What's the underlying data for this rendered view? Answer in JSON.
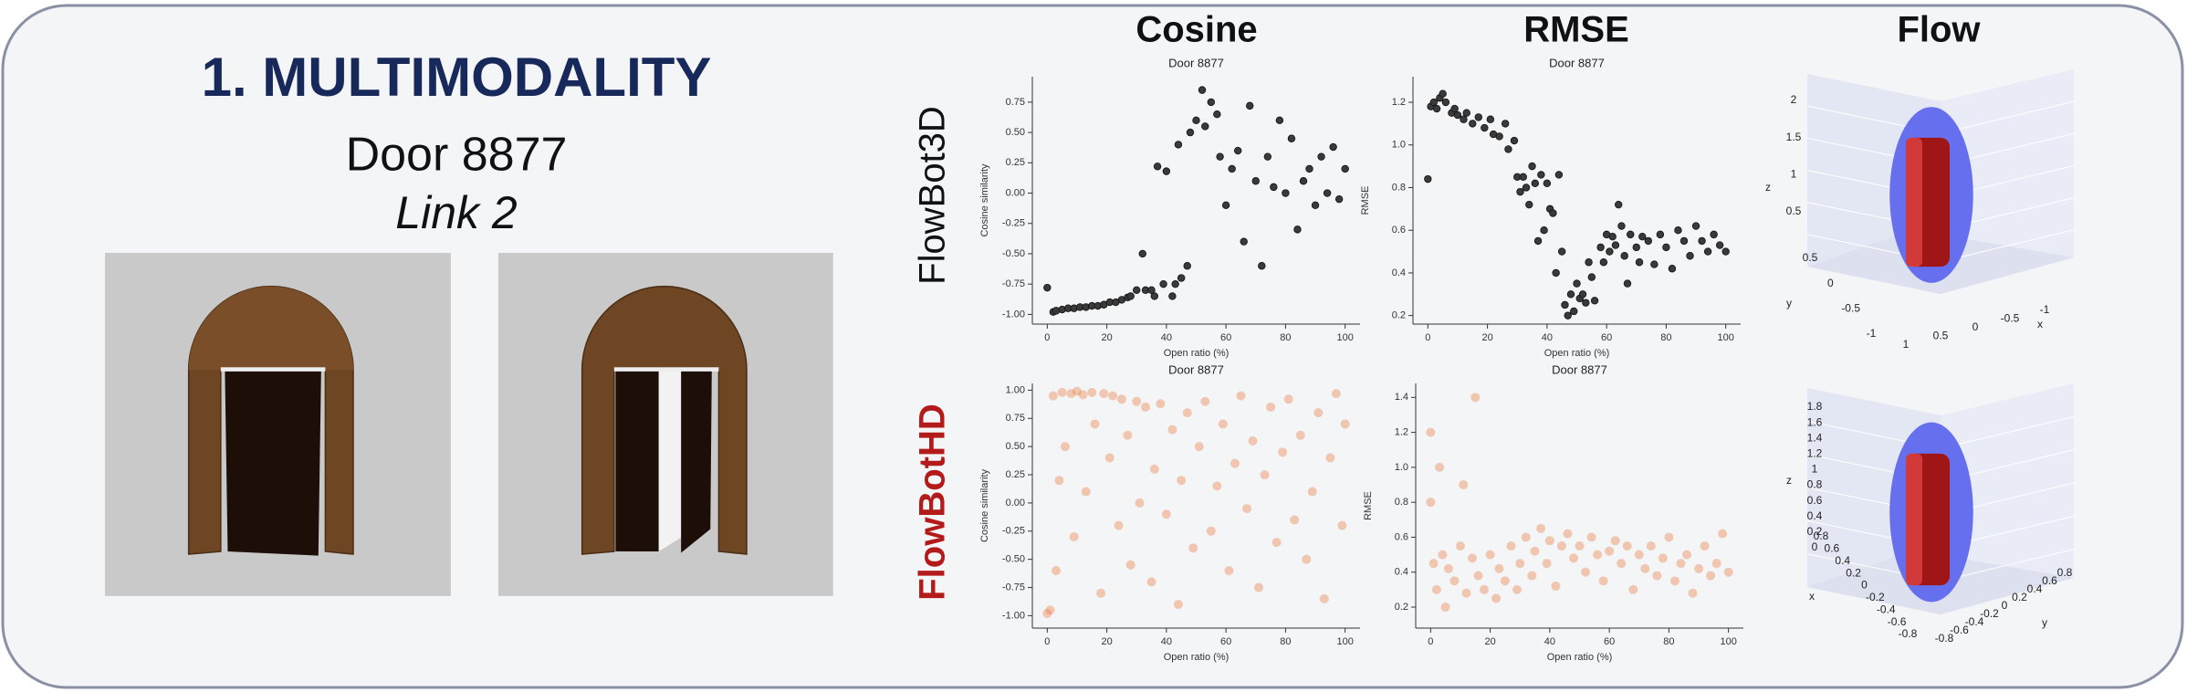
{
  "header": {
    "title": "1. MULTIMODALITY",
    "object": "Door 8877",
    "link": "Link 2"
  },
  "columns": [
    "Cosine",
    "RMSE",
    "Flow"
  ],
  "rows": [
    "FlowBot3D",
    "FlowBotHD"
  ],
  "chart_data": [
    {
      "type": "scatter",
      "title": "Door 8877",
      "x_label": "Open ratio (%)",
      "y_label": "Cosine similarity",
      "color": "#3a3a3a",
      "alpha": 1,
      "x": [
        0,
        2,
        3,
        5,
        7,
        9,
        11,
        13,
        15,
        17,
        19,
        21,
        23,
        25,
        27,
        28,
        30,
        32,
        33,
        35,
        36,
        37,
        39,
        40,
        42,
        43,
        44,
        45,
        47,
        48,
        50,
        52,
        53,
        55,
        57,
        58,
        60,
        62,
        64,
        66,
        68,
        70,
        72,
        74,
        76,
        78,
        80,
        82,
        84,
        86,
        88,
        90,
        92,
        94,
        96,
        98,
        100
      ],
      "values": [
        -0.78,
        -0.98,
        -0.97,
        -0.96,
        -0.95,
        -0.95,
        -0.94,
        -0.94,
        -0.93,
        -0.93,
        -0.92,
        -0.9,
        -0.9,
        -0.88,
        -0.86,
        -0.85,
        -0.8,
        -0.5,
        -0.8,
        -0.8,
        -0.85,
        0.22,
        -0.75,
        0.18,
        -0.85,
        -0.75,
        0.4,
        -0.7,
        -0.6,
        0.5,
        0.6,
        0.85,
        0.55,
        0.75,
        0.65,
        0.3,
        -0.1,
        0.2,
        0.35,
        -0.4,
        0.72,
        0.1,
        -0.6,
        0.3,
        0.05,
        0.6,
        0.0,
        0.45,
        -0.3,
        0.1,
        0.2,
        -0.1,
        0.3,
        0.0,
        0.38,
        -0.05,
        0.2
      ],
      "xlim": [
        -5,
        105
      ],
      "xticks": [
        0,
        20,
        40,
        60,
        80,
        100
      ],
      "ylim": [
        -1.08,
        0.96
      ],
      "yticks": [
        {
          "value": -1,
          "label": "-1.00"
        },
        {
          "value": -0.75,
          "label": "-0.75"
        },
        {
          "value": -0.5,
          "label": "-0.50"
        },
        {
          "value": -0.25,
          "label": "-0.25"
        },
        {
          "value": 0,
          "label": "0.00"
        },
        {
          "value": 0.25,
          "label": "0.25"
        },
        {
          "value": 0.5,
          "label": "0.50"
        },
        {
          "value": 0.75,
          "label": "0.75"
        }
      ]
    },
    {
      "type": "scatter",
      "title": "Door 8877",
      "x_label": "Open ratio (%)",
      "y_label": "RMSE",
      "color": "#3a3a3a",
      "alpha": 1,
      "x": [
        0,
        1,
        2,
        3,
        4,
        5,
        6,
        8,
        9,
        10,
        12,
        13,
        15,
        17,
        19,
        21,
        22,
        24,
        26,
        27,
        29,
        30,
        31,
        32,
        33,
        34,
        35,
        36,
        37,
        38,
        39,
        40,
        41,
        42,
        43,
        44,
        45,
        46,
        47,
        48,
        49,
        50,
        51,
        52,
        53,
        54,
        55,
        56,
        58,
        59,
        60,
        61,
        62,
        63,
        64,
        65,
        66,
        67,
        68,
        70,
        71,
        72,
        74,
        76,
        78,
        80,
        82,
        84,
        86,
        88,
        90,
        92,
        94,
        96,
        98,
        100
      ],
      "values": [
        0.84,
        1.18,
        1.2,
        1.17,
        1.22,
        1.24,
        1.2,
        1.15,
        1.17,
        1.14,
        1.12,
        1.15,
        1.1,
        1.13,
        1.08,
        1.12,
        1.05,
        1.04,
        1.1,
        0.98,
        1.02,
        0.85,
        0.78,
        0.85,
        0.8,
        0.72,
        0.9,
        0.82,
        0.55,
        0.86,
        0.6,
        0.82,
        0.7,
        0.68,
        0.4,
        0.86,
        0.5,
        0.25,
        0.2,
        0.3,
        0.22,
        0.35,
        0.28,
        0.3,
        0.26,
        0.45,
        0.38,
        0.27,
        0.52,
        0.45,
        0.58,
        0.5,
        0.57,
        0.53,
        0.72,
        0.62,
        0.48,
        0.35,
        0.58,
        0.52,
        0.45,
        0.57,
        0.55,
        0.44,
        0.58,
        0.52,
        0.42,
        0.6,
        0.55,
        0.48,
        0.62,
        0.55,
        0.5,
        0.58,
        0.53,
        0.5
      ],
      "xlim": [
        -5,
        105
      ],
      "xticks": [
        0,
        20,
        40,
        60,
        80,
        100
      ],
      "ylim": [
        0.16,
        1.32
      ],
      "yticks": [
        0.2,
        0.4,
        0.6,
        0.8,
        {
          "value": 1,
          "label": "1.0"
        },
        1.2
      ]
    },
    {
      "type": "scatter",
      "title": "Door 8877",
      "x_label": "Open ratio (%)",
      "y_label": "Cosine similarity",
      "color": "#e8702a",
      "alpha": 0.35,
      "x": [
        0,
        1,
        2,
        3,
        4,
        5,
        6,
        8,
        9,
        10,
        12,
        13,
        15,
        16,
        18,
        19,
        21,
        22,
        24,
        25,
        27,
        28,
        30,
        31,
        33,
        35,
        36,
        38,
        40,
        42,
        44,
        45,
        47,
        49,
        51,
        53,
        55,
        57,
        59,
        61,
        63,
        65,
        67,
        69,
        71,
        73,
        75,
        77,
        79,
        81,
        83,
        85,
        87,
        89,
        91,
        93,
        95,
        97,
        99,
        100
      ],
      "values": [
        -0.98,
        -0.95,
        0.95,
        -0.6,
        0.2,
        0.98,
        0.5,
        0.97,
        -0.3,
        0.99,
        0.96,
        0.1,
        0.98,
        0.7,
        -0.8,
        0.97,
        0.4,
        0.95,
        -0.2,
        0.92,
        0.6,
        -0.55,
        0.9,
        0.0,
        0.85,
        -0.7,
        0.3,
        0.88,
        -0.1,
        0.65,
        -0.9,
        0.2,
        0.8,
        -0.4,
        0.5,
        0.9,
        -0.25,
        0.15,
        0.7,
        -0.6,
        0.35,
        0.95,
        -0.05,
        0.55,
        -0.75,
        0.25,
        0.85,
        -0.35,
        0.45,
        0.92,
        -0.15,
        0.6,
        -0.5,
        0.1,
        0.8,
        -0.85,
        0.4,
        0.97,
        -0.2,
        0.7
      ],
      "xlim": [
        -5,
        105
      ],
      "xticks": [
        0,
        20,
        40,
        60,
        80,
        100
      ],
      "ylim": [
        -1.11,
        1.06
      ],
      "yticks": [
        {
          "value": -1,
          "label": "-1.00"
        },
        {
          "value": -0.75,
          "label": "-0.75"
        },
        {
          "value": -0.5,
          "label": "-0.50"
        },
        {
          "value": -0.25,
          "label": "-0.25"
        },
        {
          "value": 0,
          "label": "0.00"
        },
        {
          "value": 0.25,
          "label": "0.25"
        },
        {
          "value": 0.5,
          "label": "0.50"
        },
        {
          "value": 0.75,
          "label": "0.75"
        },
        {
          "value": 1,
          "label": "1.00"
        }
      ]
    },
    {
      "type": "scatter",
      "title": "Door 8877",
      "x_label": "Open ratio (%)",
      "y_label": "RMSE",
      "color": "#e8702a",
      "alpha": 0.35,
      "x": [
        0,
        0,
        1,
        2,
        3,
        4,
        5,
        6,
        8,
        10,
        11,
        12,
        14,
        15,
        16,
        18,
        20,
        22,
        23,
        25,
        27,
        29,
        30,
        32,
        34,
        35,
        37,
        39,
        40,
        42,
        44,
        46,
        48,
        50,
        52,
        54,
        56,
        58,
        60,
        62,
        64,
        66,
        68,
        70,
        72,
        74,
        76,
        78,
        80,
        82,
        84,
        86,
        88,
        90,
        92,
        94,
        96,
        98,
        100
      ],
      "values": [
        1.2,
        0.8,
        0.45,
        0.3,
        1.0,
        0.5,
        0.2,
        0.42,
        0.35,
        0.55,
        0.9,
        0.28,
        0.48,
        1.4,
        0.38,
        0.3,
        0.5,
        0.25,
        0.42,
        0.35,
        0.55,
        0.3,
        0.45,
        0.6,
        0.38,
        0.52,
        0.65,
        0.45,
        0.58,
        0.32,
        0.55,
        0.62,
        0.48,
        0.55,
        0.4,
        0.6,
        0.5,
        0.35,
        0.52,
        0.58,
        0.45,
        0.55,
        0.3,
        0.5,
        0.42,
        0.55,
        0.38,
        0.48,
        0.6,
        0.35,
        0.45,
        0.5,
        0.28,
        0.42,
        0.55,
        0.38,
        0.45,
        0.62,
        0.4
      ],
      "xlim": [
        -5,
        105
      ],
      "xticks": [
        0,
        20,
        40,
        60,
        80,
        100
      ],
      "ylim": [
        0.08,
        1.48
      ],
      "yticks": [
        0.2,
        0.4,
        0.6,
        0.8,
        {
          "value": 1,
          "label": "1.0"
        },
        1.2,
        1.4
      ]
    }
  ],
  "flow_plots": [
    {
      "z_label": "z",
      "y_label": "y",
      "x_label": "x",
      "z_ticks": [
        "2",
        "1.5",
        "1",
        "0.5"
      ],
      "y_ticks": [
        "0.5",
        "0",
        "-0.5",
        "-1"
      ],
      "x_ticks": [
        "1",
        "0.5",
        "0",
        "-0.5",
        "-1"
      ]
    },
    {
      "z_label": "z",
      "y_label": "y",
      "x_label": "x",
      "z_ticks": [
        "1.8",
        "1.6",
        "1.4",
        "1.2",
        "1",
        "0.8",
        "0.6",
        "0.4",
        "0.2",
        "0"
      ],
      "y_ticks": [
        "-0.8",
        "-0.6",
        "-0.4",
        "-0.2",
        "0",
        "0.2",
        "0.4",
        "0.6",
        "0.8"
      ],
      "x_ticks": [
        "0.8",
        "0.6",
        "0.4",
        "0.2",
        "0",
        "-0.2",
        "-0.4",
        "-0.6",
        "-0.8"
      ]
    }
  ]
}
